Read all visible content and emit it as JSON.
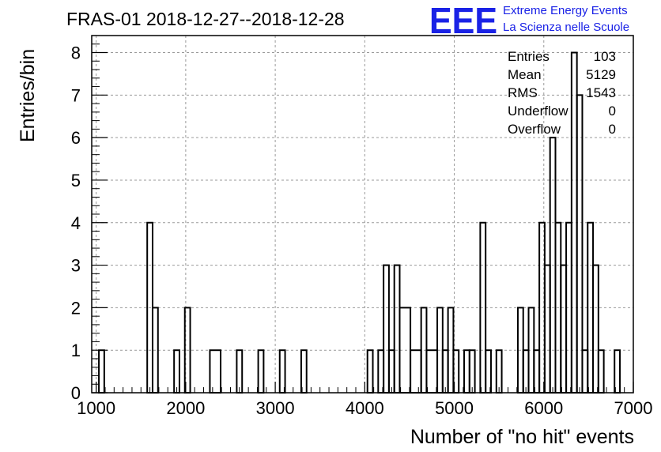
{
  "chart_data": {
    "type": "bar",
    "style": "step-histogram",
    "title": "FRAS-01 2018-12-27--2018-12-28",
    "xlabel": "Number of \"no hit\" events",
    "ylabel": "Entries/bin",
    "xlim": [
      950,
      7000
    ],
    "ylim": [
      0,
      8.4
    ],
    "bin_width": 60,
    "x_ticks": [
      1000,
      2000,
      3000,
      4000,
      5000,
      6000,
      7000
    ],
    "y_ticks": [
      0,
      1,
      2,
      3,
      4,
      5,
      6,
      7,
      8
    ],
    "grid": true,
    "bins": [
      [
        1030,
        1090,
        1
      ],
      [
        1570,
        1630,
        4
      ],
      [
        1630,
        1690,
        2
      ],
      [
        1870,
        1930,
        1
      ],
      [
        1990,
        2050,
        2
      ],
      [
        2270,
        2390,
        1
      ],
      [
        2570,
        2630,
        1
      ],
      [
        2810,
        2870,
        1
      ],
      [
        3050,
        3110,
        1
      ],
      [
        3290,
        3350,
        1
      ],
      [
        4030,
        4090,
        1
      ],
      [
        4150,
        4210,
        1
      ],
      [
        4210,
        4270,
        3
      ],
      [
        4270,
        4330,
        1
      ],
      [
        4330,
        4390,
        3
      ],
      [
        4390,
        4510,
        2
      ],
      [
        4510,
        4630,
        1
      ],
      [
        4630,
        4690,
        2
      ],
      [
        4690,
        4810,
        1
      ],
      [
        4810,
        4870,
        2
      ],
      [
        4870,
        4930,
        1
      ],
      [
        4930,
        4990,
        2
      ],
      [
        4990,
        5050,
        1
      ],
      [
        5110,
        5170,
        1
      ],
      [
        5170,
        5230,
        1
      ],
      [
        5290,
        5350,
        4
      ],
      [
        5350,
        5410,
        1
      ],
      [
        5470,
        5530,
        1
      ],
      [
        5710,
        5770,
        2
      ],
      [
        5770,
        5830,
        1
      ],
      [
        5830,
        5890,
        2
      ],
      [
        5890,
        5950,
        1
      ],
      [
        5950,
        6010,
        4
      ],
      [
        6010,
        6070,
        3
      ],
      [
        6070,
        6130,
        6
      ],
      [
        6130,
        6190,
        4
      ],
      [
        6190,
        6250,
        3
      ],
      [
        6250,
        6310,
        4
      ],
      [
        6310,
        6370,
        8
      ],
      [
        6370,
        6430,
        7
      ],
      [
        6430,
        6490,
        1
      ],
      [
        6490,
        6550,
        4
      ],
      [
        6550,
        6610,
        3
      ],
      [
        6610,
        6670,
        1
      ],
      [
        6790,
        6850,
        1
      ]
    ],
    "stats": [
      {
        "label": "Entries",
        "value": "103"
      },
      {
        "label": "Mean",
        "value": "5129"
      },
      {
        "label": "RMS",
        "value": "1543"
      },
      {
        "label": "Underflow",
        "value": "0"
      },
      {
        "label": "Overflow",
        "value": "0"
      }
    ]
  },
  "logo": {
    "mark": "EEE",
    "line1": "Extreme Energy Events",
    "line2": "La Scienza nelle Scuole",
    "color": "#1a22e6"
  }
}
